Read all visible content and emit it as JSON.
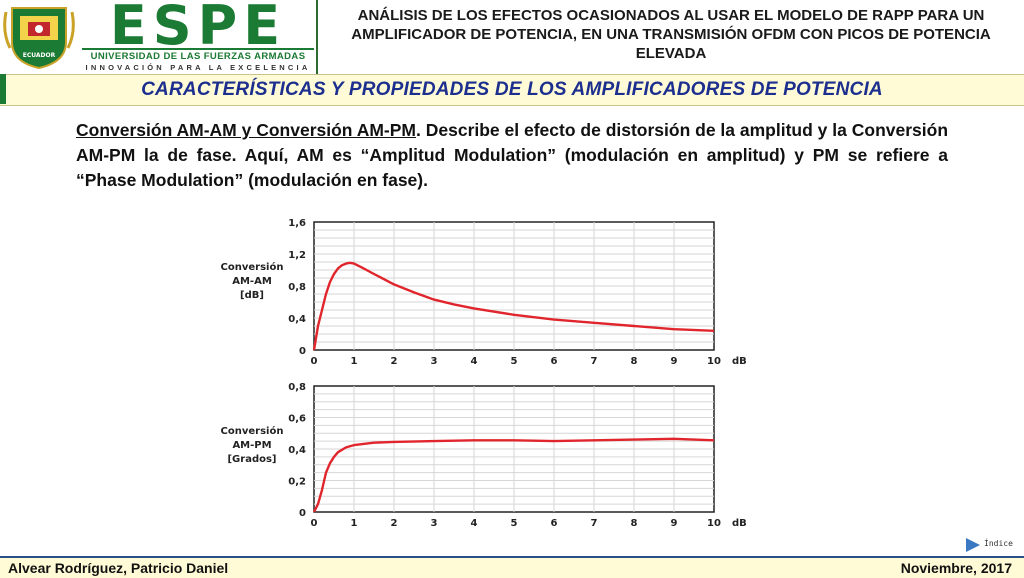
{
  "header": {
    "logo_text": "ECUADOR",
    "brand_word": "ESPE",
    "brand_line1": "UNIVERSIDAD DE LAS FUERZAS ARMADAS",
    "brand_line2": "INNOVACIÓN PARA LA EXCELENCIA",
    "doc_title": "ANÁLISIS DE LOS EFECTOS OCASIONADOS AL USAR EL MODELO DE RAPP PARA UN AMPLIFICADOR DE POTENCIA, EN UNA TRANSMISIÓN OFDM CON PICOS DE POTENCIA ELEVADA"
  },
  "section_title": "CARACTERÍSTICAS Y PROPIEDADES DE LOS AMPLIFICADORES DE POTENCIA",
  "body": {
    "term": "Conversión AM-AM y Conversión AM-PM",
    "rest": ". Describe el efecto de distorsión de la amplitud y la Conversión AM-PM la de fase. Aquí, AM es “Amplitud Modulation” (modulación en amplitud) y PM se refiere a “Phase Modulation” (modulación en fase)."
  },
  "colors": {
    "accent_green": "#1b7a33",
    "title_blue": "#1c2f8f",
    "band_yellow": "#fffbd6",
    "curve_red": "#e0262c"
  },
  "chart_data": [
    {
      "type": "line",
      "title": "",
      "ylabel_lines": [
        "Conversión",
        "AM-AM",
        "[dB]"
      ],
      "xlabel": "dB",
      "xlim": [
        0,
        10
      ],
      "ylim": [
        0,
        1.6
      ],
      "x_ticks": [
        "0",
        "1",
        "2",
        "3",
        "4",
        "5",
        "6",
        "7",
        "8",
        "9",
        "10"
      ],
      "y_ticks": [
        "0",
        "0,4",
        "0,8",
        "1,2",
        "1,6"
      ],
      "y_tick_values": [
        0,
        0.4,
        0.8,
        1.2,
        1.6
      ],
      "grid": true,
      "series": [
        {
          "x": [
            0,
            0.1,
            0.2,
            0.3,
            0.4,
            0.5,
            0.6,
            0.7,
            0.8,
            0.9,
            1.0,
            1.2,
            1.5,
            2.0,
            2.5,
            3.0,
            3.5,
            4.0,
            5.0,
            6.0,
            7.0,
            8.0,
            9.0,
            10.0
          ],
          "y": [
            0,
            0.3,
            0.5,
            0.7,
            0.85,
            0.95,
            1.02,
            1.06,
            1.08,
            1.09,
            1.08,
            1.03,
            0.95,
            0.82,
            0.72,
            0.63,
            0.57,
            0.52,
            0.44,
            0.38,
            0.34,
            0.3,
            0.26,
            0.24
          ]
        }
      ]
    },
    {
      "type": "line",
      "title": "",
      "ylabel_lines": [
        "Conversión",
        "AM-PM",
        "[Grados]"
      ],
      "xlabel": "dB",
      "xlim": [
        0,
        10
      ],
      "ylim": [
        0,
        0.8
      ],
      "x_ticks": [
        "0",
        "1",
        "2",
        "3",
        "4",
        "5",
        "6",
        "7",
        "8",
        "9",
        "10"
      ],
      "y_ticks": [
        "0",
        "0,2",
        "0,4",
        "0,6",
        "0,8"
      ],
      "y_tick_values": [
        0,
        0.2,
        0.4,
        0.6,
        0.8
      ],
      "grid": true,
      "series": [
        {
          "x": [
            0,
            0.1,
            0.2,
            0.3,
            0.4,
            0.5,
            0.6,
            0.8,
            1.0,
            1.5,
            2.0,
            3.0,
            4.0,
            5.0,
            6.0,
            7.0,
            8.0,
            9.0,
            10.0
          ],
          "y": [
            0,
            0.05,
            0.14,
            0.25,
            0.31,
            0.35,
            0.38,
            0.41,
            0.425,
            0.44,
            0.445,
            0.45,
            0.455,
            0.455,
            0.45,
            0.455,
            0.46,
            0.465,
            0.455
          ]
        }
      ]
    }
  ],
  "nav": {
    "index_label": "Índice"
  },
  "footer": {
    "author": "Alvear Rodríguez, Patricio Daniel",
    "date": "Noviembre, 2017"
  }
}
